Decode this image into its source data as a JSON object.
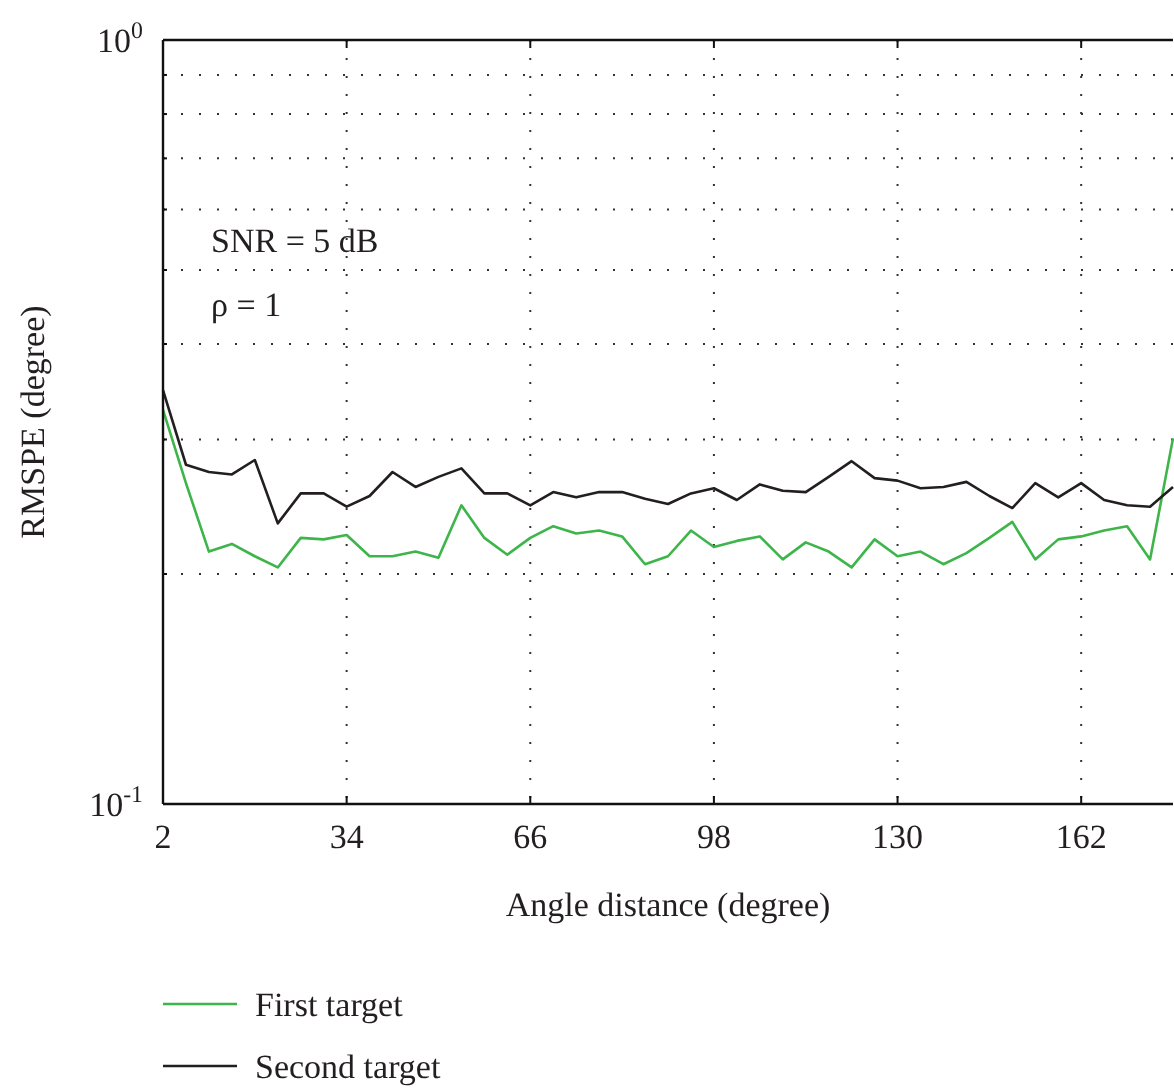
{
  "chart_data": {
    "type": "line",
    "xlabel": "Angle distance (degree)",
    "ylabel": "RMSPE (degree)",
    "x": [
      2,
      6,
      10,
      14,
      18,
      22,
      26,
      30,
      34,
      38,
      42,
      46,
      50,
      54,
      58,
      62,
      66,
      70,
      74,
      78,
      82,
      86,
      90,
      94,
      98,
      102,
      106,
      110,
      114,
      118,
      122,
      126,
      130,
      134,
      138,
      142,
      146,
      150,
      154,
      158,
      162,
      166,
      170,
      174,
      178
    ],
    "series": [
      {
        "name": "First target",
        "color": "#3db54a",
        "values": [
          0.328,
          0.263,
          0.214,
          0.219,
          0.211,
          0.204,
          0.223,
          0.222,
          0.225,
          0.211,
          0.211,
          0.214,
          0.21,
          0.246,
          0.223,
          0.212,
          0.223,
          0.231,
          0.226,
          0.228,
          0.224,
          0.206,
          0.211,
          0.228,
          0.217,
          0.221,
          0.224,
          0.209,
          0.22,
          0.214,
          0.204,
          0.222,
          0.211,
          0.214,
          0.206,
          0.213,
          0.223,
          0.234,
          0.209,
          0.222,
          0.224,
          0.228,
          0.231,
          0.209,
          0.301
        ]
      },
      {
        "name": "Second target",
        "color": "#231f20",
        "values": [
          0.348,
          0.278,
          0.272,
          0.27,
          0.282,
          0.233,
          0.255,
          0.255,
          0.245,
          0.253,
          0.272,
          0.26,
          0.268,
          0.275,
          0.255,
          0.255,
          0.246,
          0.256,
          0.252,
          0.256,
          0.256,
          0.251,
          0.247,
          0.255,
          0.259,
          0.25,
          0.262,
          0.257,
          0.256,
          0.268,
          0.281,
          0.267,
          0.265,
          0.259,
          0.26,
          0.264,
          0.253,
          0.244,
          0.263,
          0.252,
          0.263,
          0.25,
          0.246,
          0.245,
          0.26
        ]
      }
    ],
    "xlim": [
      2,
      178
    ],
    "xticks": [
      2,
      34,
      66,
      98,
      130,
      162
    ],
    "log": true,
    "ylim": [
      0.1,
      1
    ],
    "yticks": [
      {
        "value": 0.1,
        "label": "10$^{-1}$"
      },
      {
        "value": 0.2,
        "label": null
      },
      {
        "value": 0.3,
        "label": null
      },
      {
        "value": 0.4,
        "label": null
      },
      {
        "value": 0.5,
        "label": null
      },
      {
        "value": 0.6,
        "label": null
      },
      {
        "value": 0.7,
        "label": null
      },
      {
        "value": 0.8,
        "label": null
      },
      {
        "value": 0.9,
        "label": null
      },
      {
        "value": 1,
        "label": "10$^{0}$"
      }
    ],
    "grid": true,
    "line_style": "solid",
    "legend": "bottom",
    "annotations": [
      "SNR = 5 dB",
      "ρ = 1"
    ]
  }
}
